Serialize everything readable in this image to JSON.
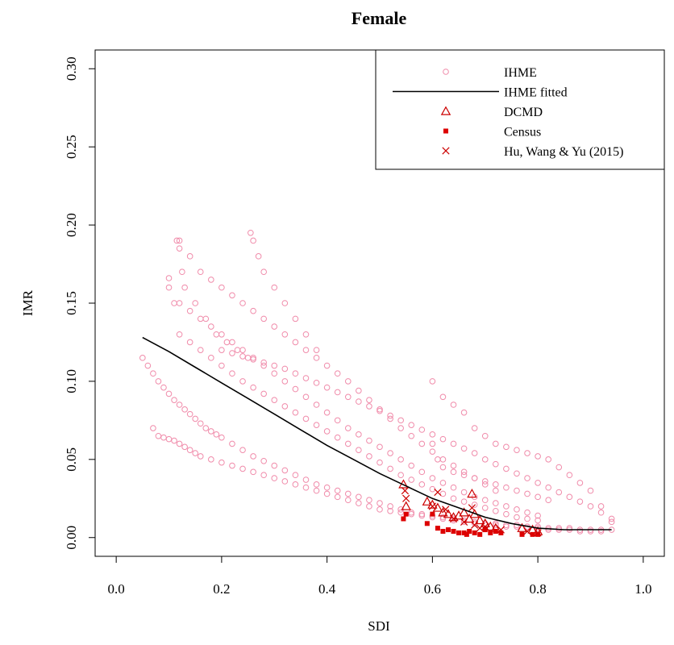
{
  "chart_data": {
    "type": "scatter",
    "title": "Female",
    "xlabel": "SDI",
    "ylabel": "IMR",
    "xlim": [
      -0.04,
      1.04
    ],
    "ylim": [
      -0.012,
      0.312
    ],
    "xticks": [
      "0.0",
      "0.2",
      "0.4",
      "0.6",
      "0.8",
      "1.0"
    ],
    "yticks": [
      "0.00",
      "0.05",
      "0.10",
      "0.15",
      "0.20",
      "0.25",
      "0.30"
    ],
    "xtick_values": [
      0.0,
      0.2,
      0.4,
      0.6,
      0.8,
      1.0
    ],
    "ytick_values": [
      0.0,
      0.05,
      0.1,
      0.15,
      0.2,
      0.25,
      0.3
    ],
    "grid": false,
    "legend_position": "top-right",
    "colors": {
      "IHME": "#F08BAA",
      "IHME fitted": "#000000",
      "DCMD": "#CC0000",
      "Census": "#DD0000",
      "Hu, Wang & Yu (2015)": "#CC0000"
    },
    "legend": [
      {
        "label": "IHME",
        "marker": "circle-open",
        "color": "#F08BAA"
      },
      {
        "label": "IHME fitted",
        "marker": "line",
        "color": "#000000"
      },
      {
        "label": "DCMD",
        "marker": "triangle-open",
        "color": "#CC0000"
      },
      {
        "label": "Census",
        "marker": "square-filled",
        "color": "#DD0000"
      },
      {
        "label": "Hu, Wang & Yu (2015)",
        "marker": "cross",
        "color": "#CC0000"
      }
    ],
    "series": [
      {
        "name": "IHME",
        "marker": "circle-open",
        "note_points": "dense cloud, representative subset",
        "x": [
          0.05,
          0.06,
          0.07,
          0.08,
          0.09,
          0.1,
          0.11,
          0.12,
          0.13,
          0.14,
          0.15,
          0.16,
          0.17,
          0.18,
          0.19,
          0.2,
          0.22,
          0.24,
          0.26,
          0.28,
          0.3,
          0.32,
          0.34,
          0.36,
          0.38,
          0.4,
          0.42,
          0.44,
          0.46,
          0.48,
          0.5,
          0.52,
          0.54,
          0.56,
          0.58,
          0.6,
          0.62,
          0.64,
          0.66,
          0.68,
          0.7,
          0.72,
          0.74,
          0.76,
          0.78,
          0.8,
          0.82,
          0.84,
          0.86,
          0.88,
          0.9,
          0.92,
          0.94,
          0.1,
          0.12,
          0.14,
          0.16,
          0.18,
          0.2,
          0.22,
          0.24,
          0.26,
          0.28,
          0.3,
          0.32,
          0.34,
          0.36,
          0.38,
          0.4,
          0.42,
          0.44,
          0.46,
          0.48,
          0.5,
          0.52,
          0.54,
          0.56,
          0.58,
          0.6,
          0.62,
          0.64,
          0.66,
          0.68,
          0.7,
          0.72,
          0.74,
          0.76,
          0.78,
          0.8,
          0.12,
          0.14,
          0.16,
          0.18,
          0.2,
          0.22,
          0.24,
          0.26,
          0.28,
          0.3,
          0.32,
          0.34,
          0.36,
          0.38,
          0.4,
          0.42,
          0.44,
          0.46,
          0.48,
          0.5,
          0.52,
          0.54,
          0.56,
          0.58,
          0.6,
          0.62,
          0.64,
          0.66,
          0.68,
          0.7,
          0.72,
          0.07,
          0.08,
          0.09,
          0.1,
          0.11,
          0.12,
          0.13,
          0.14,
          0.15,
          0.16,
          0.18,
          0.2,
          0.22,
          0.24,
          0.26,
          0.28,
          0.3,
          0.32,
          0.34,
          0.36,
          0.38,
          0.4,
          0.42,
          0.44,
          0.46,
          0.48,
          0.5,
          0.52,
          0.54,
          0.56,
          0.58,
          0.6,
          0.62,
          0.64,
          0.66,
          0.68,
          0.7,
          0.72,
          0.74,
          0.76,
          0.78,
          0.8,
          0.82,
          0.84,
          0.86,
          0.88,
          0.9,
          0.92,
          0.12,
          0.14,
          0.16,
          0.18,
          0.2,
          0.22,
          0.24,
          0.26,
          0.28,
          0.3,
          0.32,
          0.34,
          0.36,
          0.38,
          0.4,
          0.42,
          0.44,
          0.46,
          0.48,
          0.5,
          0.52,
          0.54,
          0.56,
          0.58,
          0.6,
          0.62,
          0.64,
          0.66,
          0.68,
          0.7,
          0.72,
          0.74,
          0.76,
          0.78,
          0.8,
          0.2,
          0.22,
          0.24,
          0.26,
          0.28,
          0.3,
          0.32,
          0.34,
          0.36,
          0.38,
          0.4,
          0.42,
          0.44,
          0.46,
          0.48,
          0.5,
          0.52,
          0.54,
          0.56,
          0.58,
          0.6,
          0.62,
          0.64,
          0.66,
          0.68,
          0.7,
          0.72,
          0.74,
          0.76,
          0.78,
          0.8,
          0.82,
          0.84,
          0.86,
          0.88,
          0.9,
          0.92,
          0.94,
          0.6,
          0.62,
          0.64,
          0.66,
          0.68,
          0.7,
          0.72,
          0.74,
          0.76,
          0.78,
          0.8,
          0.82,
          0.84,
          0.86,
          0.88,
          0.9,
          0.92,
          0.94,
          0.1,
          0.11,
          0.115,
          0.12,
          0.125,
          0.13,
          0.15,
          0.17,
          0.19,
          0.21,
          0.23,
          0.25,
          0.255,
          0.26,
          0.27,
          0.28,
          0.3,
          0.32,
          0.34,
          0.36,
          0.38,
          0.6,
          0.61,
          0.62,
          0.64,
          0.66,
          0.68,
          0.7,
          0.72,
          0.74,
          0.76,
          0.78,
          0.8,
          0.82
        ],
        "y": [
          0.115,
          0.11,
          0.105,
          0.1,
          0.096,
          0.092,
          0.088,
          0.085,
          0.082,
          0.079,
          0.076,
          0.073,
          0.07,
          0.068,
          0.066,
          0.064,
          0.06,
          0.056,
          0.052,
          0.049,
          0.046,
          0.043,
          0.04,
          0.037,
          0.034,
          0.032,
          0.03,
          0.028,
          0.026,
          0.024,
          0.022,
          0.02,
          0.018,
          0.016,
          0.015,
          0.014,
          0.013,
          0.012,
          0.011,
          0.01,
          0.009,
          0.009,
          0.008,
          0.008,
          0.007,
          0.007,
          0.006,
          0.006,
          0.006,
          0.005,
          0.005,
          0.005,
          0.005,
          0.16,
          0.15,
          0.145,
          0.14,
          0.135,
          0.13,
          0.125,
          0.12,
          0.115,
          0.11,
          0.105,
          0.1,
          0.095,
          0.09,
          0.085,
          0.08,
          0.075,
          0.07,
          0.066,
          0.062,
          0.058,
          0.054,
          0.05,
          0.046,
          0.042,
          0.038,
          0.035,
          0.032,
          0.029,
          0.026,
          0.024,
          0.022,
          0.02,
          0.018,
          0.016,
          0.014,
          0.19,
          0.18,
          0.17,
          0.165,
          0.16,
          0.155,
          0.15,
          0.145,
          0.14,
          0.135,
          0.13,
          0.125,
          0.12,
          0.115,
          0.11,
          0.105,
          0.1,
          0.094,
          0.088,
          0.082,
          0.076,
          0.07,
          0.065,
          0.06,
          0.055,
          0.05,
          0.046,
          0.042,
          0.038,
          0.034,
          0.03,
          0.07,
          0.065,
          0.064,
          0.063,
          0.062,
          0.06,
          0.058,
          0.056,
          0.054,
          0.052,
          0.05,
          0.048,
          0.046,
          0.044,
          0.042,
          0.04,
          0.038,
          0.036,
          0.034,
          0.032,
          0.03,
          0.028,
          0.026,
          0.024,
          0.022,
          0.02,
          0.018,
          0.017,
          0.016,
          0.015,
          0.014,
          0.013,
          0.012,
          0.011,
          0.01,
          0.009,
          0.008,
          0.008,
          0.007,
          0.007,
          0.006,
          0.006,
          0.005,
          0.005,
          0.005,
          0.004,
          0.004,
          0.004,
          0.13,
          0.125,
          0.12,
          0.115,
          0.11,
          0.105,
          0.1,
          0.096,
          0.092,
          0.088,
          0.084,
          0.08,
          0.076,
          0.072,
          0.068,
          0.064,
          0.06,
          0.056,
          0.052,
          0.048,
          0.044,
          0.04,
          0.037,
          0.034,
          0.031,
          0.028,
          0.025,
          0.023,
          0.021,
          0.019,
          0.017,
          0.015,
          0.013,
          0.012,
          0.011,
          0.12,
          0.118,
          0.116,
          0.114,
          0.112,
          0.11,
          0.108,
          0.105,
          0.102,
          0.099,
          0.096,
          0.093,
          0.09,
          0.087,
          0.084,
          0.081,
          0.078,
          0.075,
          0.072,
          0.069,
          0.066,
          0.063,
          0.06,
          0.057,
          0.054,
          0.05,
          0.047,
          0.044,
          0.041,
          0.038,
          0.035,
          0.032,
          0.029,
          0.026,
          0.023,
          0.02,
          0.016,
          0.012,
          0.1,
          0.09,
          0.085,
          0.08,
          0.07,
          0.065,
          0.06,
          0.058,
          0.056,
          0.054,
          0.052,
          0.05,
          0.045,
          0.04,
          0.035,
          0.03,
          0.02,
          0.01,
          0.166,
          0.15,
          0.19,
          0.185,
          0.17,
          0.16,
          0.15,
          0.14,
          0.13,
          0.125,
          0.12,
          0.115,
          0.195,
          0.19,
          0.18,
          0.17,
          0.16,
          0.15,
          0.14,
          0.13,
          0.12,
          0.06,
          0.05,
          0.045,
          0.042,
          0.04,
          0.038,
          0.036,
          0.034,
          0.032,
          0.03,
          0.028,
          0.026,
          0.024
        ]
      },
      {
        "name": "IHME fitted",
        "type": "line",
        "x": [
          0.05,
          0.1,
          0.15,
          0.2,
          0.25,
          0.3,
          0.35,
          0.4,
          0.45,
          0.5,
          0.55,
          0.6,
          0.65,
          0.7,
          0.75,
          0.8,
          0.85,
          0.9,
          0.94
        ],
        "y": [
          0.128,
          0.119,
          0.109,
          0.099,
          0.089,
          0.079,
          0.069,
          0.059,
          0.05,
          0.041,
          0.033,
          0.025,
          0.019,
          0.013,
          0.009,
          0.006,
          0.005,
          0.005,
          0.005
        ]
      },
      {
        "name": "DCMD",
        "marker": "triangle-open",
        "x": [
          0.545,
          0.55,
          0.59,
          0.6,
          0.61,
          0.62,
          0.63,
          0.64,
          0.65,
          0.66,
          0.67,
          0.675,
          0.68,
          0.69,
          0.7,
          0.71,
          0.72,
          0.77,
          0.79,
          0.8
        ],
        "y": [
          0.034,
          0.02,
          0.023,
          0.021,
          0.019,
          0.016,
          0.015,
          0.013,
          0.014,
          0.016,
          0.012,
          0.028,
          0.015,
          0.011,
          0.009,
          0.007,
          0.006,
          0.006,
          0.005,
          0.004
        ]
      },
      {
        "name": "Census",
        "marker": "square-filled",
        "x": [
          0.545,
          0.55,
          0.59,
          0.6,
          0.61,
          0.62,
          0.63,
          0.64,
          0.65,
          0.66,
          0.665,
          0.67,
          0.68,
          0.69,
          0.7,
          0.71,
          0.72,
          0.73,
          0.77,
          0.79,
          0.8
        ],
        "y": [
          0.012,
          0.015,
          0.009,
          0.015,
          0.006,
          0.004,
          0.005,
          0.004,
          0.003,
          0.003,
          0.002,
          0.004,
          0.003,
          0.002,
          0.005,
          0.003,
          0.004,
          0.003,
          0.002,
          0.002,
          0.002
        ]
      },
      {
        "name": "Hu, Wang & Yu (2015)",
        "marker": "cross",
        "x": [
          0.548,
          0.55,
          0.6,
          0.61,
          0.625,
          0.64,
          0.66,
          0.675,
          0.68,
          0.69,
          0.7,
          0.73,
          0.78,
          0.8
        ],
        "y": [
          0.03,
          0.025,
          0.02,
          0.029,
          0.018,
          0.012,
          0.01,
          0.019,
          0.008,
          0.006,
          0.007,
          0.005,
          0.004,
          0.003
        ]
      }
    ]
  }
}
